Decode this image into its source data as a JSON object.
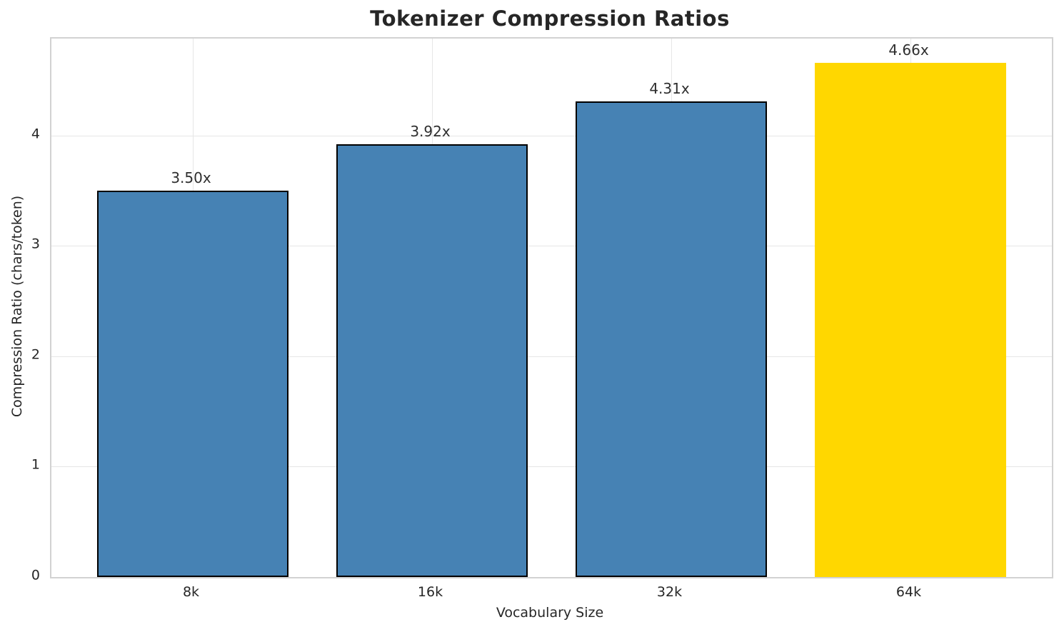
{
  "title": "Tokenizer Compression Ratios",
  "chart_data": {
    "type": "bar",
    "title": "Tokenizer Compression Ratios",
    "xlabel": "Vocabulary Size",
    "ylabel": "Compression Ratio (chars/token)",
    "categories": [
      "8k",
      "16k",
      "32k",
      "64k"
    ],
    "values": [
      3.5,
      3.92,
      4.31,
      4.66
    ],
    "bar_labels": [
      "3.50x",
      "3.92x",
      "4.31x",
      "4.66x"
    ],
    "bar_colors": [
      "#4682b4",
      "#4682b4",
      "#4682b4",
      "#ffd700"
    ],
    "bar_edge_colors": [
      "#000000",
      "#000000",
      "#000000",
      "none"
    ],
    "series_color": "#4682b4",
    "highlight_color": "#ffd700",
    "yticks": [
      0,
      1,
      2,
      3,
      4
    ],
    "ytick_labels": [
      "0",
      "1",
      "2",
      "3",
      "4"
    ],
    "ylim": [
      0,
      4.88
    ],
    "grid": true,
    "legend": false
  }
}
